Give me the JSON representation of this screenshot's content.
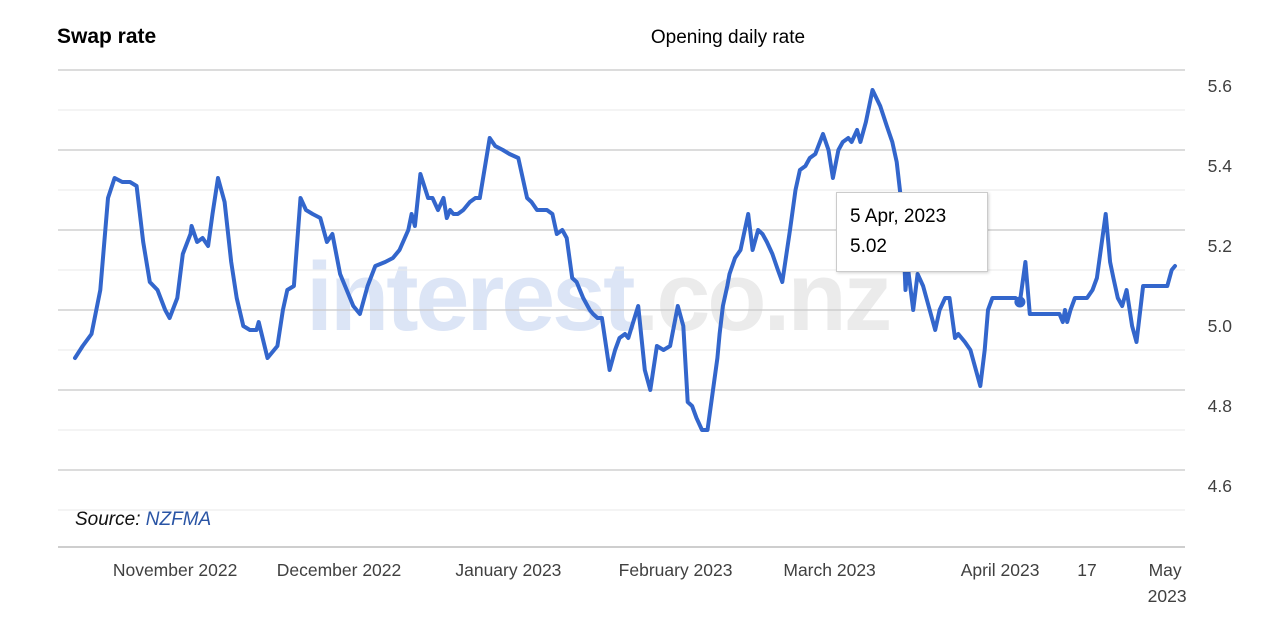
{
  "header": {
    "left_title": "Swap rate",
    "center_title": "Opening daily rate"
  },
  "watermark": {
    "part1": "interest",
    "part2": ".co.nz",
    "part1_color": "#dce5f6",
    "part2_color": "#ebebeb"
  },
  "source": {
    "label": "Source:",
    "link": "NZFMA",
    "link_color": "#2a55a5"
  },
  "tooltip": {
    "date": "5 Apr, 2023",
    "value": "5.02"
  },
  "chart_data": {
    "type": "line",
    "title": "Opening daily rate",
    "series_name": "Swap rate opening daily rate",
    "line_color": "#3366cc",
    "grid_minor_color": "#eaeaea",
    "grid_major_color": "#c8c8c8",
    "axis_line_color": "#bdbdbd",
    "axis_label_color": "#404040",
    "ylim": [
      4.4,
      5.6
    ],
    "grid_step": 0.1,
    "y_major_labels": [
      5.6,
      5.4,
      5.2,
      5.0,
      4.8,
      4.6
    ],
    "y_axis_side": "right",
    "legend_position": "none",
    "x_ticks": [
      {
        "label": "November 2022",
        "f": 0.091
      },
      {
        "label": "December 2022",
        "f": 0.24
      },
      {
        "label": "January 2023",
        "f": 0.394
      },
      {
        "label": "February 2023",
        "f": 0.546
      },
      {
        "label": "March 2023",
        "f": 0.686
      },
      {
        "label": "April 2023",
        "f": 0.841
      },
      {
        "label": "17",
        "f": 0.92
      },
      {
        "label": "May 2023",
        "f": 0.991,
        "two_line": true
      }
    ],
    "highlight": {
      "f": 0.859,
      "value": 5.02,
      "tooltip_date": "5 Apr, 2023",
      "tooltip_value": "5.02"
    },
    "points": [
      [
        0.0,
        4.88
      ],
      [
        0.007,
        4.91
      ],
      [
        0.015,
        4.94
      ],
      [
        0.023,
        5.05
      ],
      [
        0.03,
        5.28
      ],
      [
        0.036,
        5.33
      ],
      [
        0.043,
        5.32
      ],
      [
        0.05,
        5.32
      ],
      [
        0.056,
        5.31
      ],
      [
        0.062,
        5.17
      ],
      [
        0.068,
        5.07
      ],
      [
        0.075,
        5.05
      ],
      [
        0.082,
        5.0
      ],
      [
        0.086,
        4.98
      ],
      [
        0.093,
        5.03
      ],
      [
        0.098,
        5.14
      ],
      [
        0.105,
        5.19
      ],
      [
        0.106,
        5.21
      ],
      [
        0.111,
        5.17
      ],
      [
        0.116,
        5.18
      ],
      [
        0.121,
        5.16
      ],
      [
        0.125,
        5.24
      ],
      [
        0.13,
        5.33
      ],
      [
        0.136,
        5.27
      ],
      [
        0.142,
        5.12
      ],
      [
        0.147,
        5.03
      ],
      [
        0.153,
        4.96
      ],
      [
        0.159,
        4.95
      ],
      [
        0.165,
        4.95
      ],
      [
        0.167,
        4.97
      ],
      [
        0.175,
        4.88
      ],
      [
        0.184,
        4.91
      ],
      [
        0.189,
        5.0
      ],
      [
        0.193,
        5.05
      ],
      [
        0.199,
        5.06
      ],
      [
        0.205,
        5.28
      ],
      [
        0.21,
        5.25
      ],
      [
        0.216,
        5.24
      ],
      [
        0.223,
        5.23
      ],
      [
        0.229,
        5.17
      ],
      [
        0.234,
        5.19
      ],
      [
        0.241,
        5.09
      ],
      [
        0.247,
        5.05
      ],
      [
        0.253,
        5.01
      ],
      [
        0.259,
        4.99
      ],
      [
        0.266,
        5.06
      ],
      [
        0.273,
        5.11
      ],
      [
        0.282,
        5.12
      ],
      [
        0.289,
        5.13
      ],
      [
        0.295,
        5.15
      ],
      [
        0.303,
        5.2
      ],
      [
        0.306,
        5.24
      ],
      [
        0.309,
        5.21
      ],
      [
        0.314,
        5.34
      ],
      [
        0.321,
        5.28
      ],
      [
        0.325,
        5.28
      ],
      [
        0.33,
        5.25
      ],
      [
        0.335,
        5.28
      ],
      [
        0.338,
        5.23
      ],
      [
        0.341,
        5.25
      ],
      [
        0.344,
        5.24
      ],
      [
        0.348,
        5.24
      ],
      [
        0.353,
        5.25
      ],
      [
        0.359,
        5.27
      ],
      [
        0.364,
        5.28
      ],
      [
        0.368,
        5.28
      ],
      [
        0.377,
        5.43
      ],
      [
        0.382,
        5.41
      ],
      [
        0.389,
        5.4
      ],
      [
        0.395,
        5.39
      ],
      [
        0.403,
        5.38
      ],
      [
        0.411,
        5.28
      ],
      [
        0.415,
        5.27
      ],
      [
        0.42,
        5.25
      ],
      [
        0.425,
        5.25
      ],
      [
        0.429,
        5.25
      ],
      [
        0.434,
        5.24
      ],
      [
        0.438,
        5.19
      ],
      [
        0.443,
        5.2
      ],
      [
        0.447,
        5.18
      ],
      [
        0.452,
        5.08
      ],
      [
        0.456,
        5.07
      ],
      [
        0.462,
        5.03
      ],
      [
        0.468,
        5.0
      ],
      [
        0.471,
        4.99
      ],
      [
        0.475,
        4.98
      ],
      [
        0.479,
        4.98
      ],
      [
        0.486,
        4.85
      ],
      [
        0.491,
        4.9
      ],
      [
        0.495,
        4.93
      ],
      [
        0.5,
        4.94
      ],
      [
        0.503,
        4.93
      ],
      [
        0.512,
        5.01
      ],
      [
        0.518,
        4.85
      ],
      [
        0.523,
        4.8
      ],
      [
        0.529,
        4.91
      ],
      [
        0.535,
        4.9
      ],
      [
        0.541,
        4.91
      ],
      [
        0.548,
        5.01
      ],
      [
        0.553,
        4.96
      ],
      [
        0.557,
        4.77
      ],
      [
        0.561,
        4.76
      ],
      [
        0.565,
        4.73
      ],
      [
        0.57,
        4.7
      ],
      [
        0.575,
        4.7
      ],
      [
        0.58,
        4.8
      ],
      [
        0.584,
        4.88
      ],
      [
        0.586,
        4.94
      ],
      [
        0.589,
        5.01
      ],
      [
        0.593,
        5.06
      ],
      [
        0.595,
        5.09
      ],
      [
        0.6,
        5.13
      ],
      [
        0.605,
        5.15
      ],
      [
        0.612,
        5.24
      ],
      [
        0.616,
        5.15
      ],
      [
        0.621,
        5.2
      ],
      [
        0.625,
        5.19
      ],
      [
        0.629,
        5.17
      ],
      [
        0.634,
        5.14
      ],
      [
        0.639,
        5.1
      ],
      [
        0.643,
        5.07
      ],
      [
        0.65,
        5.2
      ],
      [
        0.655,
        5.3
      ],
      [
        0.659,
        5.35
      ],
      [
        0.664,
        5.36
      ],
      [
        0.668,
        5.38
      ],
      [
        0.673,
        5.39
      ],
      [
        0.68,
        5.44
      ],
      [
        0.685,
        5.4
      ],
      [
        0.689,
        5.33
      ],
      [
        0.694,
        5.4
      ],
      [
        0.698,
        5.42
      ],
      [
        0.703,
        5.43
      ],
      [
        0.706,
        5.42
      ],
      [
        0.711,
        5.45
      ],
      [
        0.714,
        5.42
      ],
      [
        0.719,
        5.47
      ],
      [
        0.725,
        5.55
      ],
      [
        0.732,
        5.51
      ],
      [
        0.738,
        5.46
      ],
      [
        0.743,
        5.42
      ],
      [
        0.747,
        5.37
      ],
      [
        0.752,
        5.25
      ],
      [
        0.755,
        5.05
      ],
      [
        0.757,
        5.11
      ],
      [
        0.762,
        5.0
      ],
      [
        0.766,
        5.09
      ],
      [
        0.771,
        5.06
      ],
      [
        0.777,
        5.0
      ],
      [
        0.782,
        4.95
      ],
      [
        0.786,
        5.0
      ],
      [
        0.791,
        5.03
      ],
      [
        0.795,
        5.03
      ],
      [
        0.8,
        4.93
      ],
      [
        0.803,
        4.94
      ],
      [
        0.809,
        4.92
      ],
      [
        0.814,
        4.9
      ],
      [
        0.82,
        4.84
      ],
      [
        0.823,
        4.81
      ],
      [
        0.827,
        4.9
      ],
      [
        0.83,
        5.0
      ],
      [
        0.834,
        5.03
      ],
      [
        0.841,
        5.03
      ],
      [
        0.848,
        5.03
      ],
      [
        0.855,
        5.03
      ],
      [
        0.859,
        5.02
      ],
      [
        0.864,
        5.12
      ],
      [
        0.868,
        4.99
      ],
      [
        0.875,
        4.99
      ],
      [
        0.883,
        4.99
      ],
      [
        0.89,
        4.99
      ],
      [
        0.895,
        4.99
      ],
      [
        0.898,
        4.97
      ],
      [
        0.9,
        5.0
      ],
      [
        0.902,
        4.97
      ],
      [
        0.905,
        5.0
      ],
      [
        0.909,
        5.03
      ],
      [
        0.915,
        5.03
      ],
      [
        0.92,
        5.03
      ],
      [
        0.925,
        5.05
      ],
      [
        0.929,
        5.08
      ],
      [
        0.935,
        5.2
      ],
      [
        0.937,
        5.24
      ],
      [
        0.941,
        5.12
      ],
      [
        0.944,
        5.08
      ],
      [
        0.948,
        5.03
      ],
      [
        0.952,
        5.01
      ],
      [
        0.956,
        5.05
      ],
      [
        0.961,
        4.96
      ],
      [
        0.965,
        4.92
      ],
      [
        0.971,
        5.06
      ],
      [
        0.977,
        5.06
      ],
      [
        0.984,
        5.06
      ],
      [
        0.989,
        5.06
      ],
      [
        0.993,
        5.06
      ],
      [
        0.997,
        5.1
      ],
      [
        1.0,
        5.11
      ]
    ]
  }
}
